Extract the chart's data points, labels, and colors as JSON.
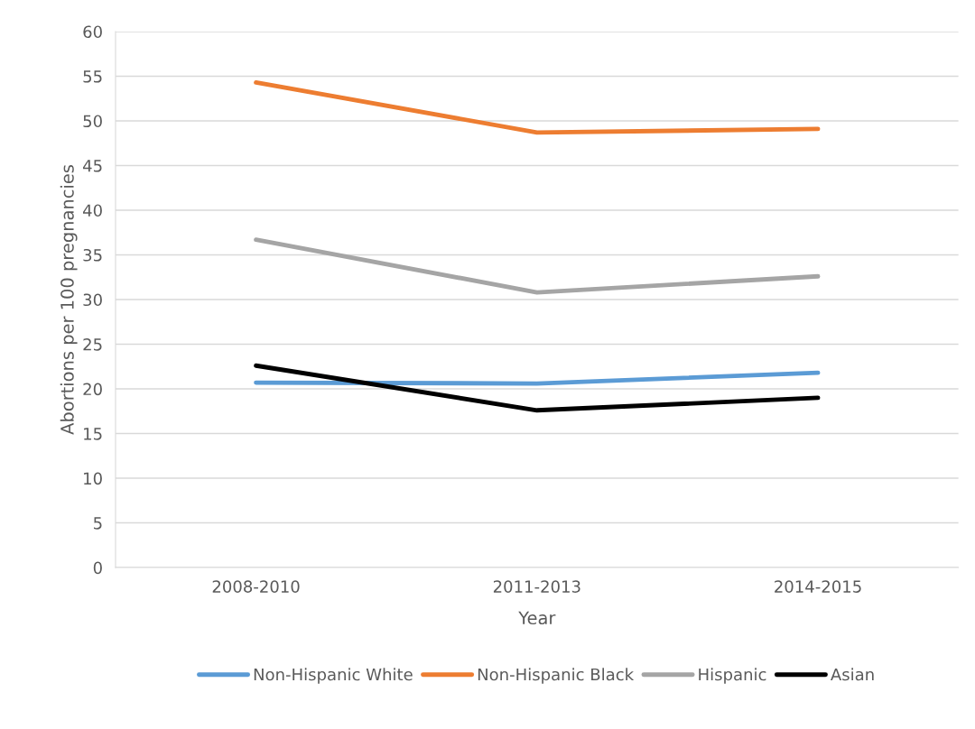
{
  "chart_data": {
    "type": "line",
    "xlabel": "Year",
    "ylabel": "Abortions per 100 pregnancies",
    "categories": [
      "2008-2010",
      "2011-2013",
      "2014-2015"
    ],
    "series": [
      {
        "name": "Non-Hispanic White",
        "color": "#5b9bd5",
        "values": [
          20.7,
          20.6,
          21.8
        ]
      },
      {
        "name": "Non-Hispanic Black",
        "color": "#ed7d31",
        "values": [
          54.3,
          48.7,
          49.1
        ]
      },
      {
        "name": "Hispanic",
        "color": "#a5a5a5",
        "values": [
          36.7,
          30.8,
          32.6
        ]
      },
      {
        "name": "Asian",
        "color": "#000000",
        "values": [
          22.6,
          17.6,
          19.0
        ]
      }
    ],
    "ylim": [
      0,
      60
    ],
    "yticks": [
      0,
      5,
      10,
      15,
      20,
      25,
      30,
      35,
      40,
      45,
      50,
      55,
      60
    ],
    "grid": "y",
    "legend": "bottom",
    "marker": "none",
    "line_style": "solid"
  }
}
